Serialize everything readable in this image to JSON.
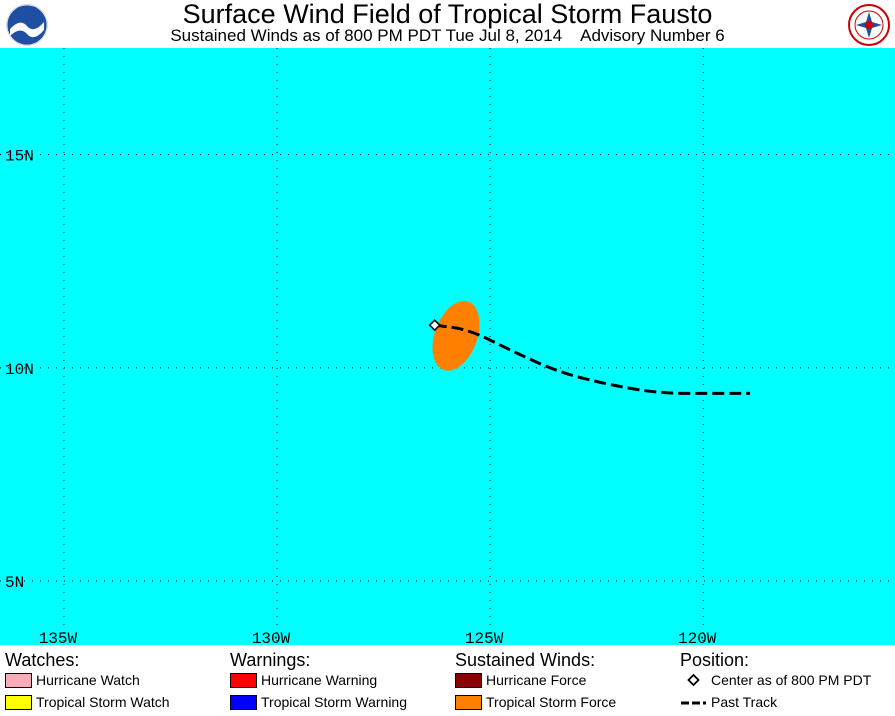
{
  "header": {
    "title": "Surface Wind Field of Tropical Storm Fausto",
    "subtitle": "Sustained Winds as of 800 PM PDT Tue Jul 8, 2014    Advisory Number 6",
    "logos": [
      "noaa-logo",
      "nws-logo"
    ]
  },
  "map": {
    "ocean_color": "#00ffff",
    "lat_labels": [
      "15N",
      "10N",
      "5N"
    ],
    "lon_labels": [
      "135W",
      "130W",
      "125W",
      "120W"
    ],
    "lat_values": [
      15,
      10,
      5
    ],
    "lon_values": [
      -135,
      -130,
      -125,
      -120
    ],
    "lon_range": [
      -136.5,
      -115.5
    ],
    "lat_range": [
      3.5,
      17.5
    ],
    "storm": {
      "center": {
        "lat": 11.0,
        "lon": -126.3
      },
      "tropical_storm_force_area": {
        "center_lat": 10.75,
        "center_lon": -125.8,
        "radius_lat": 0.85,
        "radius_lon": 0.5,
        "color": "#ff8000"
      },
      "past_track": [
        {
          "lat": 11.0,
          "lon": -126.3
        },
        {
          "lat": 10.9,
          "lon": -125.5
        },
        {
          "lat": 10.4,
          "lon": -124.5
        },
        {
          "lat": 9.9,
          "lon": -123.4
        },
        {
          "lat": 9.6,
          "lon": -122.2
        },
        {
          "lat": 9.4,
          "lon": -121.0
        },
        {
          "lat": 9.4,
          "lon": -119.8
        },
        {
          "lat": 9.4,
          "lon": -118.9
        }
      ]
    }
  },
  "legend": {
    "watches": {
      "heading": "Watches:",
      "items": [
        {
          "label": "Hurricane Watch",
          "color": "#ffaabb"
        },
        {
          "label": "Tropical Storm Watch",
          "color": "#ffff00"
        }
      ]
    },
    "warnings": {
      "heading": "Warnings:",
      "items": [
        {
          "label": "Hurricane Warning",
          "color": "#ff0000"
        },
        {
          "label": "Tropical Storm Warning",
          "color": "#0000ff"
        }
      ]
    },
    "winds": {
      "heading": "Sustained Winds:",
      "items": [
        {
          "label": "Hurricane Force",
          "color": "#8b0000"
        },
        {
          "label": "Tropical Storm Force",
          "color": "#ff8000"
        }
      ]
    },
    "position": {
      "heading": "Position:",
      "items": [
        {
          "label": "Center as of 800 PM PDT",
          "icon": "diamond-icon"
        },
        {
          "label": "Past Track",
          "icon": "dashed-line-icon"
        }
      ]
    }
  }
}
